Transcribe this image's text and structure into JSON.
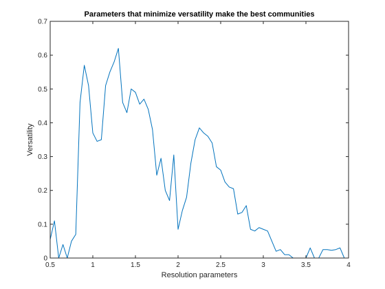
{
  "chart_data": {
    "type": "line",
    "title": "Parameters that minimize versatility make the best communities",
    "xlabel": "Resolution parameters",
    "ylabel": "Versatility",
    "xlim": [
      0.5,
      4
    ],
    "ylim": [
      0,
      0.7
    ],
    "xticks": [
      "0.5",
      "1",
      "1.5",
      "2",
      "2.5",
      "3",
      "3.5",
      "4"
    ],
    "yticks": [
      "0",
      "0.1",
      "0.2",
      "0.3",
      "0.4",
      "0.5",
      "0.6",
      "0.7"
    ],
    "grid": false,
    "line_color": "#0072BD",
    "series": [
      {
        "x": [
          0.5,
          0.55,
          0.6,
          0.65,
          0.7,
          0.75,
          0.8,
          0.85,
          0.9,
          0.95,
          1.0,
          1.05,
          1.1,
          1.15,
          1.2,
          1.25,
          1.3,
          1.35,
          1.4,
          1.45,
          1.5,
          1.55,
          1.6,
          1.65,
          1.7,
          1.75,
          1.8,
          1.85,
          1.9,
          1.95,
          2.0,
          2.05,
          2.1,
          2.15,
          2.2,
          2.25,
          2.3,
          2.35,
          2.4,
          2.45,
          2.5,
          2.55,
          2.6,
          2.65,
          2.7,
          2.75,
          2.8,
          2.85,
          2.9,
          2.95,
          3.0,
          3.05,
          3.1,
          3.15,
          3.2,
          3.25,
          3.3,
          3.35,
          3.4,
          3.45,
          3.5,
          3.55,
          3.6,
          3.65,
          3.7,
          3.75,
          3.8,
          3.85,
          3.9,
          3.95,
          4.0
        ],
        "values": [
          0.055,
          0.11,
          0.0,
          0.04,
          0.0,
          0.05,
          0.07,
          0.46,
          0.57,
          0.51,
          0.37,
          0.345,
          0.35,
          0.51,
          0.55,
          0.58,
          0.62,
          0.46,
          0.43,
          0.5,
          0.49,
          0.455,
          0.47,
          0.44,
          0.38,
          0.245,
          0.295,
          0.2,
          0.17,
          0.305,
          0.085,
          0.14,
          0.18,
          0.28,
          0.35,
          0.385,
          0.37,
          0.36,
          0.34,
          0.27,
          0.26,
          0.225,
          0.21,
          0.205,
          0.13,
          0.135,
          0.155,
          0.085,
          0.08,
          0.09,
          0.085,
          0.08,
          0.05,
          0.02,
          0.025,
          0.01,
          0.01,
          0.0,
          0.0,
          0.0,
          0.0,
          0.03,
          0.0,
          0.0,
          0.025,
          0.025,
          0.023,
          0.025,
          0.03,
          0.0,
          0.0
        ]
      }
    ]
  }
}
